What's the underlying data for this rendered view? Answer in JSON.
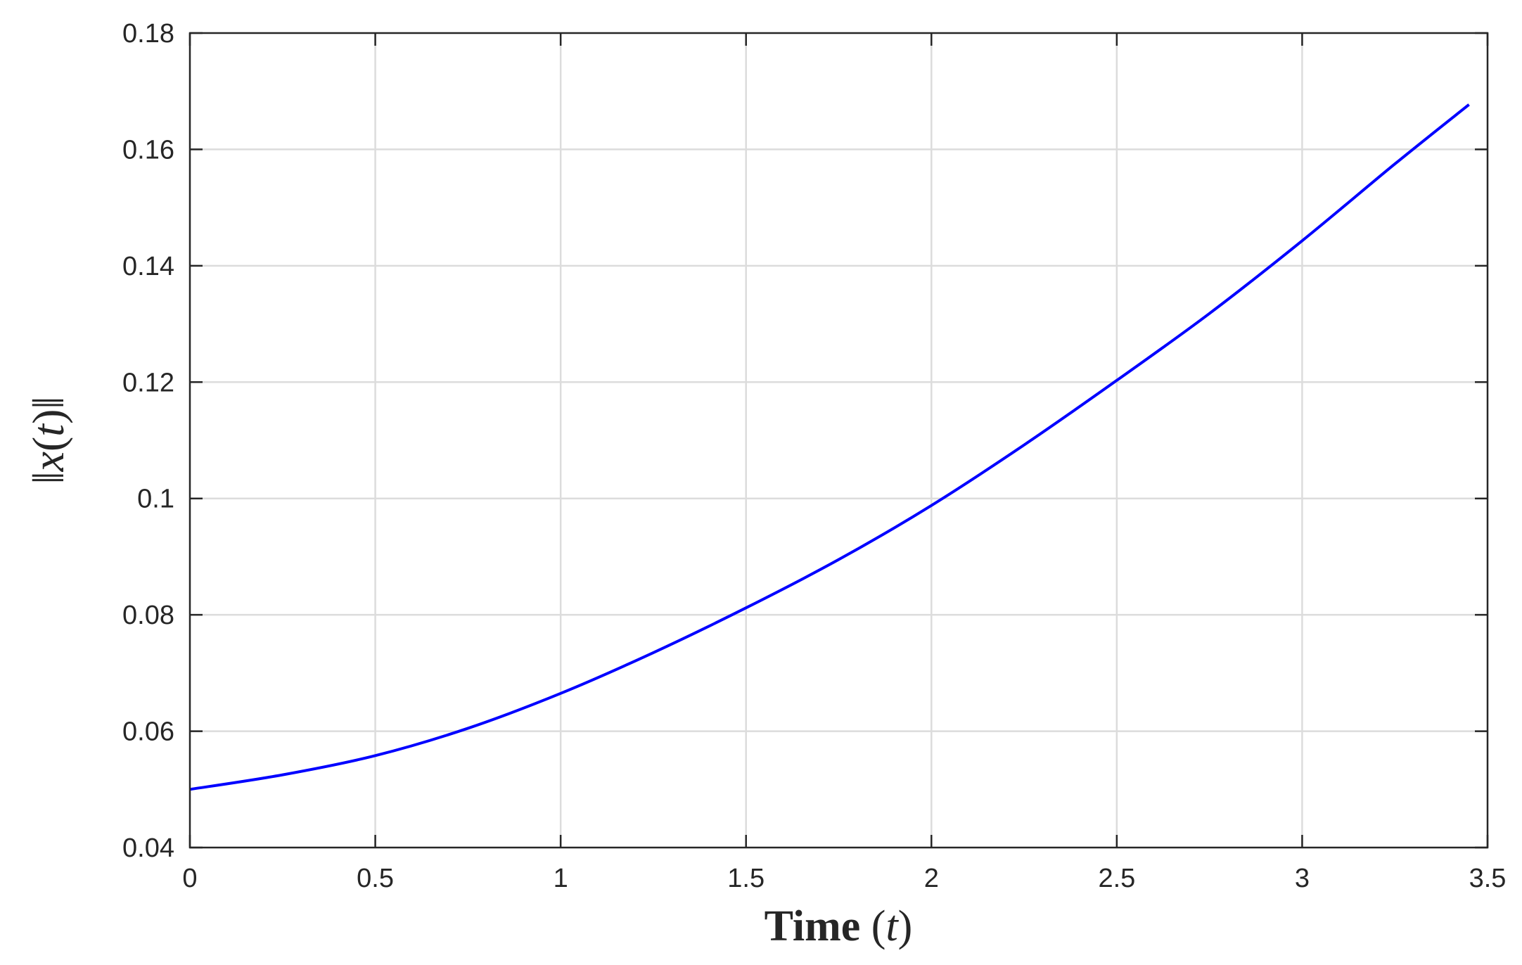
{
  "chart_data": {
    "type": "line",
    "title": "",
    "xlabel": {
      "text": "Time",
      "variable": "t"
    },
    "ylabel": {
      "text": "‖x(t)‖",
      "norm_bar": "‖",
      "variable": "x",
      "argument": "t"
    },
    "xlim": [
      0,
      3.5
    ],
    "ylim": [
      0.04,
      0.18
    ],
    "xticks": [
      "0",
      "0.5",
      "1",
      "1.5",
      "2",
      "2.5",
      "3",
      "3.5"
    ],
    "yticks": [
      "0.04",
      "0.06",
      "0.08",
      "0.1",
      "0.12",
      "0.14",
      "0.16",
      "0.18"
    ],
    "grid": true,
    "legend": "none",
    "series": [
      {
        "color": "#0000ff",
        "x": [
          0,
          0.25,
          0.5,
          0.75,
          1,
          1.25,
          1.5,
          1.75,
          2,
          2.25,
          2.5,
          2.75,
          3,
          3.25,
          3.45
        ],
        "y": [
          0.05,
          0.0525,
          0.0558,
          0.0605,
          0.0665,
          0.0735,
          0.0812,
          0.0895,
          0.0988,
          0.1092,
          0.1203,
          0.1318,
          0.1443,
          0.1575,
          0.1677
        ]
      }
    ]
  }
}
